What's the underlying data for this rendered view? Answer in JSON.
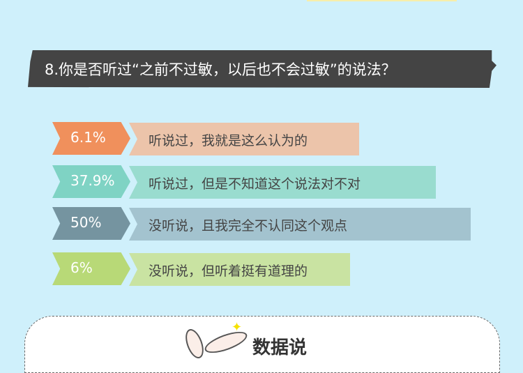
{
  "question": "8.你是否听过“之前不过敏，以后也不会过敏”的说法？",
  "options": [
    {
      "percent": "6.1%",
      "label": "听说过，我就是这么认为的",
      "tag_color": "#f0905c",
      "bar_color": "#ecc4aa"
    },
    {
      "percent": "37.9%",
      "label": "听说过，但是不知道这个说法对不对",
      "tag_color": "#7fd3c4",
      "bar_color": "#99dccf"
    },
    {
      "percent": "50%",
      "label": "没听说，且我完全不认同这个观点",
      "tag_color": "#7594a0",
      "bar_color": "#a3c3cf"
    },
    {
      "percent": "6%",
      "label": "没听说，但听着挺有道理的",
      "tag_color": "#b8d977",
      "bar_color": "#c9e3a2"
    }
  ],
  "section_title": "数据说"
}
